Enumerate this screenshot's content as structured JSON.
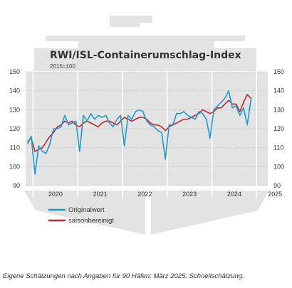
{
  "colors": {
    "original": "#1a9ad0",
    "seasonal": "#c0282f",
    "ship": "#e3e3e3",
    "grid": "#bdbdbd"
  },
  "chart_data": {
    "type": "line",
    "title": "RWI/ISL-Containerumschlag-Index",
    "subtitle": "2015=100",
    "ylim": [
      90,
      150
    ],
    "yticks": [
      90,
      100,
      110,
      120,
      130,
      140,
      150
    ],
    "x_start": "2019-11",
    "x_end": "2025-03",
    "year_labels": [
      "2020",
      "2021",
      "2022",
      "2023",
      "2024",
      "2025"
    ],
    "series": [
      {
        "name": "Originalwert",
        "color": "#1a9ad0",
        "values": [
          112,
          116,
          96,
          111,
          108,
          107,
          112,
          120,
          120,
          121,
          127,
          122,
          123,
          124,
          108,
          127,
          124,
          128,
          125,
          127,
          126,
          127,
          123,
          121,
          125,
          127,
          111,
          127,
          125,
          129,
          130,
          129,
          124,
          122,
          121,
          119,
          118,
          104,
          122,
          122,
          128,
          128,
          129,
          127,
          126,
          125,
          129,
          128,
          125,
          115,
          130,
          132,
          134,
          136,
          140,
          131,
          132,
          127,
          131,
          122,
          136
        ]
      },
      {
        "name": "saisonbereinigt",
        "color": "#c0282f",
        "values": [
          113,
          115,
          108,
          109,
          110,
          113,
          116,
          118,
          121,
          122,
          124,
          123,
          124,
          122,
          121,
          123,
          124,
          123,
          122,
          121,
          123,
          124,
          124,
          123,
          122,
          124,
          126,
          125,
          124,
          125,
          126,
          126,
          125,
          123,
          122,
          122,
          121,
          119,
          121,
          122,
          123,
          124,
          125,
          125,
          126,
          127,
          128,
          130,
          129,
          128,
          129,
          131,
          131,
          133,
          135,
          133,
          133,
          129,
          134,
          138,
          136
        ]
      }
    ]
  },
  "footer": "Eigene Schätzungen nach Angaben für 90 Häfen; März 2025: Schnellschätzung."
}
